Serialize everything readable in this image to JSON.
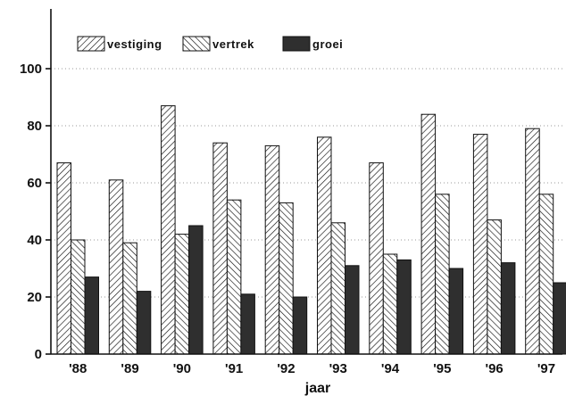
{
  "chart_data": {
    "type": "bar",
    "title": "",
    "xlabel": "jaar",
    "ylabel": "",
    "categories": [
      "'88",
      "'89",
      "'90",
      "'91",
      "'92",
      "'93",
      "'94",
      "'95",
      "'96",
      "'97"
    ],
    "series": [
      {
        "name": "vestiging",
        "values": [
          67,
          61,
          87,
          74,
          73,
          76,
          67,
          84,
          77,
          79
        ],
        "pattern": "forward-diagonal-hatch"
      },
      {
        "name": "vertrek",
        "values": [
          40,
          39,
          42,
          54,
          53,
          46,
          35,
          56,
          47,
          56
        ],
        "pattern": "back-diagonal-hatch"
      },
      {
        "name": "groei",
        "values": [
          27,
          22,
          45,
          21,
          20,
          31,
          33,
          30,
          32,
          25
        ],
        "pattern": "solid"
      }
    ],
    "ylim": [
      0,
      100
    ],
    "yticks": [
      0,
      20,
      40,
      60,
      80,
      100
    ],
    "grid": true,
    "legend_position": "top-left",
    "colors": {
      "ink": "#111111",
      "groei_fill": "#2f2f2f",
      "grid": "#9a9a9a"
    }
  }
}
